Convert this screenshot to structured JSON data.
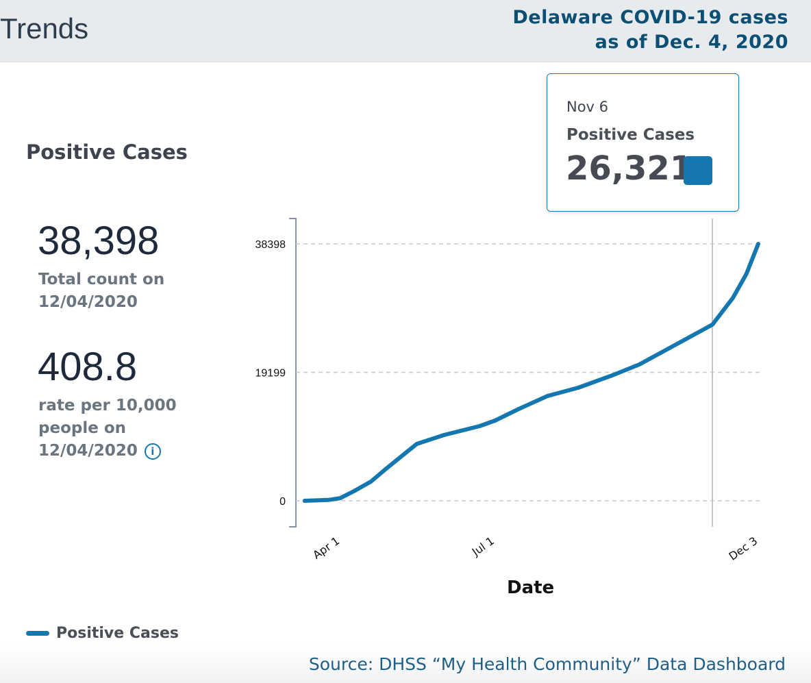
{
  "header": {
    "title": "Trends",
    "subtitle_line1": "Delaware COVID-19 cases",
    "subtitle_line2": "as of Dec. 4, 2020"
  },
  "summary": {
    "section_title": "Positive Cases",
    "total": "38,398",
    "total_label_line1": "Total count on",
    "total_label_line2": "12/04/2020",
    "rate": "408.8",
    "rate_label_line1": "rate per 10,000",
    "rate_label_line2": "people on",
    "rate_label_line3": "12/04/2020",
    "info_icon": "info-circle-icon"
  },
  "tooltip": {
    "date": "Nov 6",
    "label": "Positive Cases",
    "value": "26,321",
    "swatch_color": "#1577b0"
  },
  "legend": {
    "label": "Positive Cases",
    "color": "#1577b0"
  },
  "source": "Source: DHSS “My Health Community” Data Dashboard",
  "chart_data": {
    "type": "line",
    "xlabel": "Date",
    "ylabel": "",
    "ylim": [
      0,
      38398
    ],
    "yticks": [
      0,
      19199,
      38398
    ],
    "xticks": [
      {
        "date": "2020-04-01",
        "label": "Apr 1"
      },
      {
        "date": "2020-07-01",
        "label": "Jul 1"
      },
      {
        "date": "2020-12-03",
        "label": "Dec 3"
      }
    ],
    "grid": "horizontal dashed",
    "legend_position": "bottom-left",
    "hover_date": "2020-11-06",
    "series": [
      {
        "name": "Positive Cases",
        "color": "#1577b0",
        "points": [
          [
            "2020-03-11",
            0
          ],
          [
            "2020-03-25",
            120
          ],
          [
            "2020-04-01",
            400
          ],
          [
            "2020-04-09",
            1430
          ],
          [
            "2020-04-19",
            2870
          ],
          [
            "2020-04-27",
            4600
          ],
          [
            "2020-05-09",
            7065
          ],
          [
            "2020-05-16",
            8500
          ],
          [
            "2020-06-01",
            9830
          ],
          [
            "2020-06-22",
            11160
          ],
          [
            "2020-07-01",
            11980
          ],
          [
            "2020-07-15",
            13720
          ],
          [
            "2020-08-01",
            15670
          ],
          [
            "2020-08-19",
            16900
          ],
          [
            "2020-09-08",
            18740
          ],
          [
            "2020-09-24",
            20380
          ],
          [
            "2020-10-14",
            23140
          ],
          [
            "2020-11-06",
            26321
          ],
          [
            "2020-11-18",
            30300
          ],
          [
            "2020-11-26",
            33890
          ],
          [
            "2020-12-03",
            38398
          ]
        ]
      }
    ]
  }
}
